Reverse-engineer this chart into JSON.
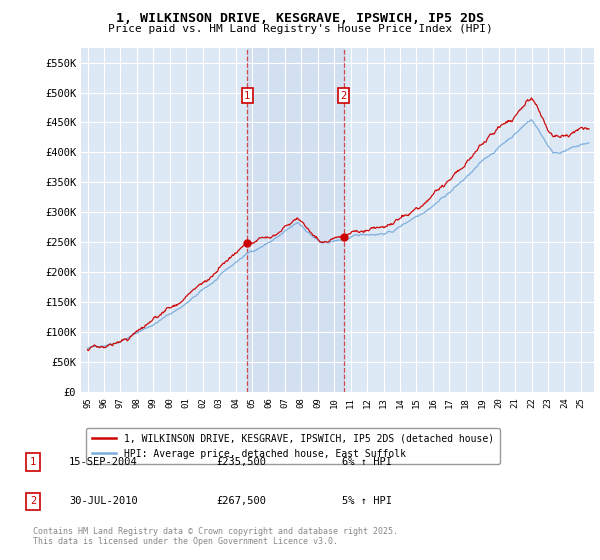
{
  "title_line1": "1, WILKINSON DRIVE, KESGRAVE, IPSWICH, IP5 2DS",
  "title_line2": "Price paid vs. HM Land Registry's House Price Index (HPI)",
  "ylim": [
    0,
    575000
  ],
  "yticks": [
    0,
    50000,
    100000,
    150000,
    200000,
    250000,
    300000,
    350000,
    400000,
    450000,
    500000,
    550000
  ],
  "ytick_labels": [
    "£0",
    "£50K",
    "£100K",
    "£150K",
    "£200K",
    "£250K",
    "£300K",
    "£350K",
    "£400K",
    "£450K",
    "£500K",
    "£550K"
  ],
  "line1_color": "#cc0000",
  "line2_color": "#7aaddc",
  "background_color": "#ffffff",
  "plot_bg_color": "#dde8f5",
  "grid_color": "#ffffff",
  "sale1_x": 2004.71,
  "sale1_price": 235500,
  "sale1_label": "1",
  "sale2_x": 2010.58,
  "sale2_price": 267500,
  "sale2_label": "2",
  "legend_label1": "1, WILKINSON DRIVE, KESGRAVE, IPSWICH, IP5 2DS (detached house)",
  "legend_label2": "HPI: Average price, detached house, East Suffolk",
  "footer_text": "Contains HM Land Registry data © Crown copyright and database right 2025.\nThis data is licensed under the Open Government Licence v3.0.",
  "table_row1": [
    "1",
    "15-SEP-2004",
    "£235,500",
    "6% ↑ HPI"
  ],
  "table_row2": [
    "2",
    "30-JUL-2010",
    "£267,500",
    "5% ↑ HPI"
  ]
}
